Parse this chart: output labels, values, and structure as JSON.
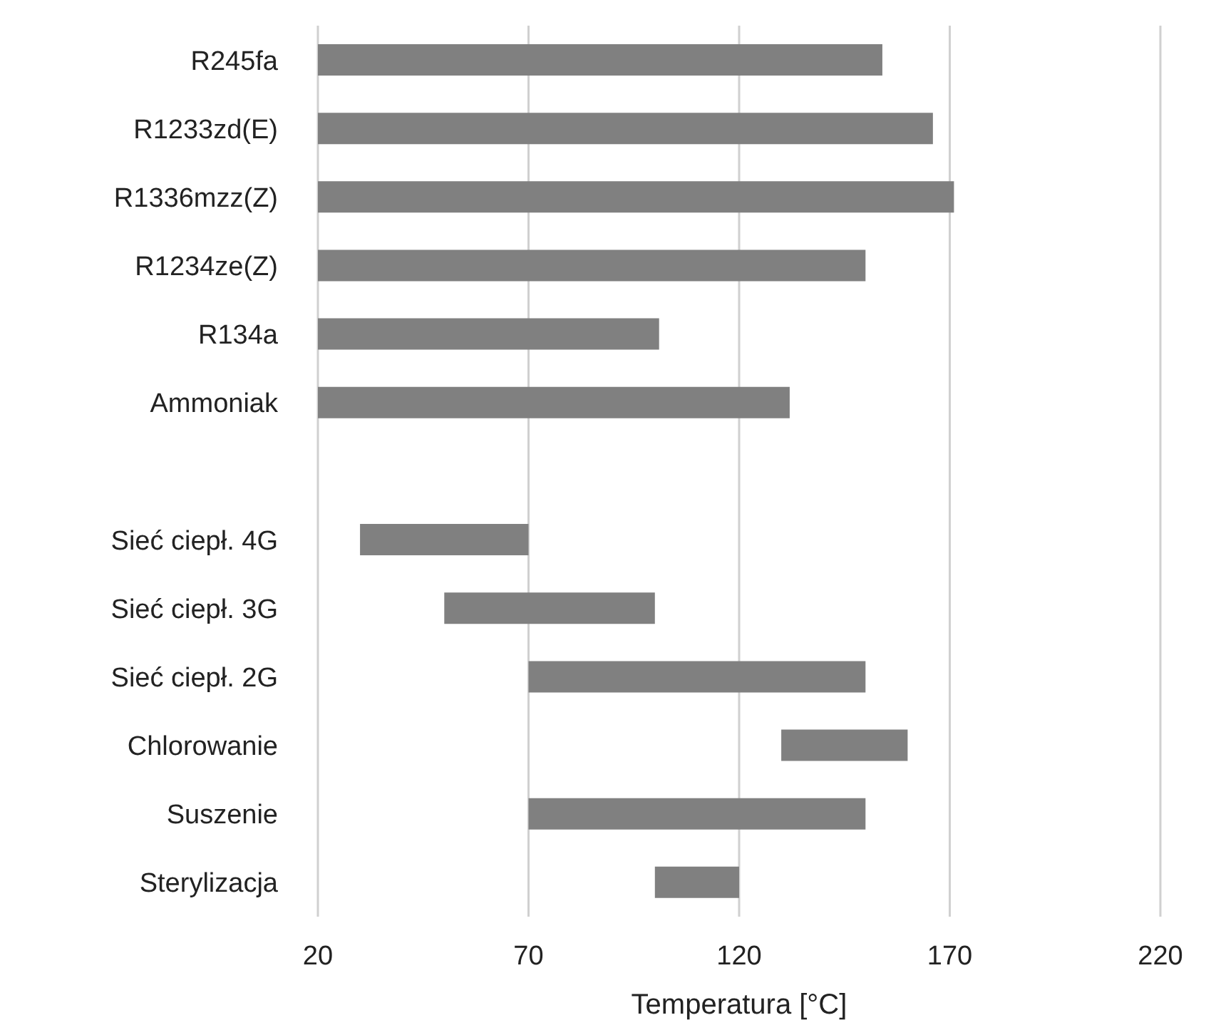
{
  "chart_data": {
    "type": "bar",
    "orientation": "horizontal",
    "xlabel": "Temperatura [°C]",
    "categories": [
      "R245fa",
      "R1233zd(E)",
      "R1336mzz(Z)",
      "R1234ze(Z)",
      "R134a",
      "Ammoniak",
      null,
      "Sieć ciepł. 4G",
      "Sieć ciepł. 3G",
      "Sieć ciepł. 2G",
      "Chlorowanie",
      "Suszenie",
      "Sterylizacja"
    ],
    "base": [
      20,
      20,
      20,
      20,
      20,
      20,
      null,
      30,
      50,
      70,
      130,
      70,
      100
    ],
    "values": [
      134,
      146,
      151,
      130,
      81,
      112,
      null,
      40,
      50,
      80,
      30,
      80,
      20
    ],
    "color": "#808080",
    "xlim": [
      20,
      220
    ],
    "xticks": [
      20,
      70,
      120,
      170,
      220
    ],
    "grid": "x",
    "legend": false
  }
}
